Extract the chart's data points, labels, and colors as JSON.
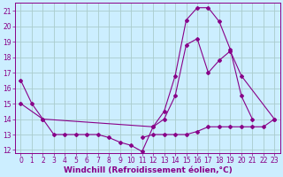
{
  "background_color": "#cceeff",
  "grid_color": "#aacccc",
  "line_color": "#880088",
  "xlabel": "Windchill (Refroidissement éolien,°C)",
  "xlim": [
    -0.5,
    23.5
  ],
  "ylim": [
    11.8,
    21.5
  ],
  "yticks": [
    12,
    13,
    14,
    15,
    16,
    17,
    18,
    19,
    20,
    21
  ],
  "xticks": [
    0,
    1,
    2,
    3,
    4,
    5,
    6,
    7,
    8,
    9,
    10,
    11,
    12,
    13,
    14,
    15,
    16,
    17,
    18,
    19,
    20,
    21,
    22,
    23
  ],
  "line1_x": [
    0,
    1,
    2,
    3,
    4,
    5,
    6,
    7,
    8,
    9,
    10,
    11,
    12,
    13,
    14,
    15,
    16,
    17,
    18,
    19,
    20,
    21
  ],
  "line1_y": [
    16.5,
    15.0,
    14.0,
    13.0,
    13.0,
    13.0,
    13.0,
    13.0,
    12.8,
    12.5,
    12.3,
    11.9,
    13.5,
    14.5,
    16.8,
    20.4,
    21.2,
    21.2,
    20.3,
    18.5,
    15.5,
    14.0
  ],
  "line2_x": [
    0,
    2,
    12,
    13,
    14,
    15,
    16,
    17,
    18,
    19,
    20,
    23
  ],
  "line2_y": [
    15.0,
    14.0,
    13.5,
    14.0,
    15.5,
    18.8,
    19.2,
    17.0,
    17.8,
    18.4,
    16.8,
    14.0
  ],
  "line3_x": [
    11,
    12,
    13,
    14,
    15,
    16,
    17,
    18,
    19,
    20,
    21,
    22,
    23
  ],
  "line3_y": [
    12.8,
    13.0,
    13.0,
    13.0,
    13.0,
    13.2,
    13.5,
    13.5,
    13.5,
    13.5,
    13.5,
    13.5,
    14.0
  ],
  "label_fontsize": 6.5,
  "tick_fontsize": 5.5
}
